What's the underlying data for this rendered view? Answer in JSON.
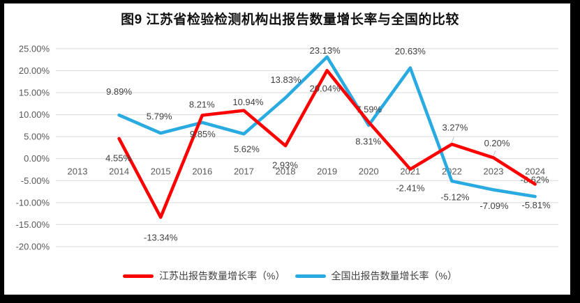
{
  "title": "图9  江苏省检验检测机构出报告数量增长率与全国的比较",
  "chart_data": {
    "type": "line",
    "title": "图9  江苏省检验检测机构出报告数量增长率与全国的比较",
    "categories": [
      "2013",
      "2014",
      "2015",
      "2016",
      "2017",
      "2018",
      "2019",
      "2020",
      "2021",
      "2022",
      "2023",
      "2024"
    ],
    "ylim": [
      -20,
      25
    ],
    "y_tick_step": 5,
    "y_tick_labels": [
      "25.00%",
      "20.00%",
      "15.00%",
      "10.00%",
      "5.00%",
      "0.00%",
      "-5.00%",
      "-10.00%",
      "-15.00%",
      "-20.00%"
    ],
    "grid": true,
    "legend_position": "bottom",
    "series": [
      {
        "name": "江苏出报告数量增长率（%）",
        "color": "#FF0000",
        "start_category": "2014",
        "values": [
          4.55,
          -13.34,
          9.85,
          10.94,
          2.93,
          20.04,
          8.31,
          -2.41,
          3.27,
          0.2,
          -5.81
        ],
        "point_labels": [
          "4.55%",
          "-13.34%",
          "9.85%",
          "10.94%",
          "2.93%",
          "20.04%",
          "8.31%",
          "-2.41%",
          "3.27%",
          "0.20%",
          "-5.81%"
        ]
      },
      {
        "name": "全国出报告数量增长率（%）",
        "color": "#29ABE2",
        "start_category": "2014",
        "values": [
          9.89,
          5.79,
          8.21,
          5.62,
          13.83,
          23.13,
          7.59,
          20.63,
          -5.12,
          -7.09,
          -8.62
        ],
        "point_labels": [
          "9.89%",
          "5.79%",
          "8.21%",
          "5.62%",
          "13.83%",
          "23.13%",
          "7.59%",
          "20.63%",
          "-5.12%",
          "-7.09%",
          "-8.62%"
        ]
      }
    ]
  },
  "legend": {
    "items": [
      {
        "label": "江苏出报告数量增长率（%）",
        "color": "#FF0000"
      },
      {
        "label": "全国出报告数量增长率（%）",
        "color": "#29ABE2"
      }
    ]
  },
  "colors": {
    "jiangsu_line": "#FF0000",
    "national_line": "#29ABE2",
    "gridline": "#D9D9D9",
    "axis_text": "#595959",
    "data_label_text": "#404040",
    "leader_line": "#BFBFBF",
    "frame": "#000000",
    "background": "#FFFFFF"
  }
}
